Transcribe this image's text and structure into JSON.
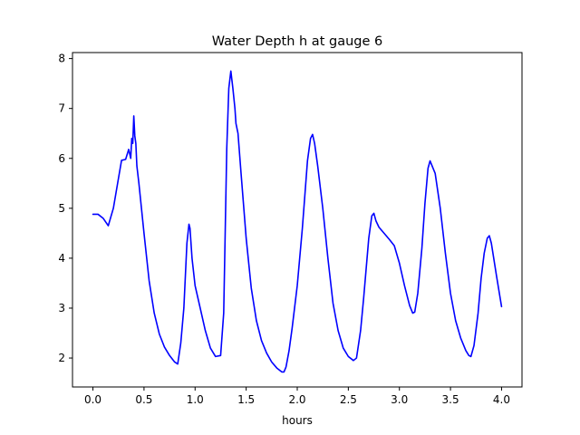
{
  "chart_data": {
    "type": "line",
    "title": "Water Depth h at gauge 6",
    "xlabel": "hours",
    "ylabel": "",
    "xlim": [
      -0.2,
      4.2
    ],
    "ylim": [
      1.42,
      8.12
    ],
    "xticks": [
      0.0,
      0.5,
      1.0,
      1.5,
      2.0,
      2.5,
      3.0,
      3.5,
      4.0
    ],
    "xtick_labels": [
      "0.0",
      "0.5",
      "1.0",
      "1.5",
      "2.0",
      "2.5",
      "3.0",
      "3.5",
      "4.0"
    ],
    "yticks": [
      2,
      3,
      4,
      5,
      6,
      7,
      8
    ],
    "ytick_labels": [
      "2",
      "3",
      "4",
      "5",
      "6",
      "7",
      "8"
    ],
    "grid": false,
    "series": [
      {
        "color": "#0000ff",
        "x": [
          0.0,
          0.05,
          0.1,
          0.15,
          0.2,
          0.25,
          0.28,
          0.32,
          0.35,
          0.37,
          0.38,
          0.39,
          0.4,
          0.41,
          0.42,
          0.43,
          0.45,
          0.5,
          0.55,
          0.6,
          0.65,
          0.7,
          0.75,
          0.8,
          0.83,
          0.86,
          0.89,
          0.92,
          0.94,
          0.95,
          0.97,
          1.0,
          1.05,
          1.1,
          1.15,
          1.2,
          1.25,
          1.28,
          1.31,
          1.33,
          1.35,
          1.37,
          1.39,
          1.4,
          1.42,
          1.45,
          1.5,
          1.55,
          1.6,
          1.65,
          1.7,
          1.75,
          1.8,
          1.85,
          1.87,
          1.89,
          1.92,
          1.95,
          2.0,
          2.05,
          2.1,
          2.13,
          2.15,
          2.17,
          2.2,
          2.25,
          2.3,
          2.35,
          2.4,
          2.45,
          2.5,
          2.55,
          2.58,
          2.62,
          2.65,
          2.7,
          2.73,
          2.75,
          2.77,
          2.8,
          2.85,
          2.9,
          2.95,
          3.0,
          3.05,
          3.1,
          3.13,
          3.15,
          3.18,
          3.22,
          3.25,
          3.28,
          3.3,
          3.32,
          3.35,
          3.4,
          3.45,
          3.5,
          3.55,
          3.6,
          3.65,
          3.68,
          3.7,
          3.73,
          3.77,
          3.8,
          3.83,
          3.86,
          3.88,
          3.9,
          3.95,
          4.0
        ],
        "y": [
          4.88,
          4.88,
          4.8,
          4.65,
          5.0,
          5.6,
          5.96,
          5.98,
          6.18,
          6.0,
          6.4,
          6.3,
          6.85,
          6.45,
          6.3,
          5.85,
          5.5,
          4.5,
          3.55,
          2.9,
          2.48,
          2.22,
          2.05,
          1.92,
          1.88,
          2.3,
          3.0,
          4.3,
          4.68,
          4.6,
          4.0,
          3.45,
          3.0,
          2.55,
          2.2,
          2.03,
          2.05,
          2.9,
          6.2,
          7.4,
          7.75,
          7.4,
          7.0,
          6.7,
          6.5,
          5.7,
          4.4,
          3.4,
          2.75,
          2.35,
          2.1,
          1.92,
          1.8,
          1.72,
          1.72,
          1.82,
          2.15,
          2.6,
          3.45,
          4.6,
          5.95,
          6.4,
          6.48,
          6.3,
          5.85,
          5.0,
          4.0,
          3.1,
          2.55,
          2.2,
          2.03,
          1.95,
          2.0,
          2.55,
          3.2,
          4.4,
          4.85,
          4.9,
          4.75,
          4.62,
          4.5,
          4.38,
          4.25,
          3.9,
          3.45,
          3.05,
          2.9,
          2.92,
          3.3,
          4.2,
          5.1,
          5.8,
          5.95,
          5.85,
          5.7,
          5.0,
          4.1,
          3.3,
          2.75,
          2.4,
          2.15,
          2.05,
          2.03,
          2.25,
          2.9,
          3.6,
          4.1,
          4.4,
          4.45,
          4.3,
          3.65,
          3.03
        ]
      }
    ]
  }
}
